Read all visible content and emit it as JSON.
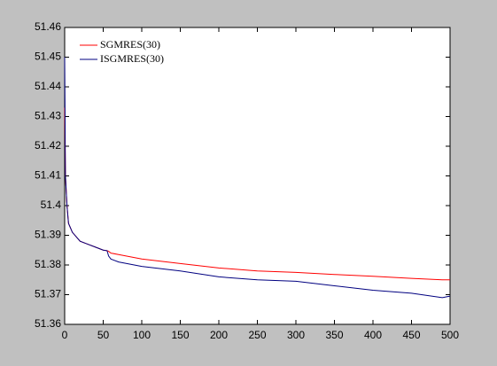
{
  "chart_data": {
    "type": "line",
    "x": [
      0,
      1,
      3,
      5,
      10,
      20,
      30,
      40,
      50,
      55,
      57,
      60,
      70,
      100,
      150,
      200,
      250,
      300,
      350,
      400,
      450,
      490,
      500
    ],
    "series": [
      {
        "name": "SGMRES(30)",
        "color": "#ff0000",
        "values": [
          51.433,
          51.41,
          51.4,
          51.394,
          51.391,
          51.388,
          51.387,
          51.386,
          51.385,
          51.3848,
          51.3846,
          51.384,
          51.3835,
          51.382,
          51.3805,
          51.379,
          51.378,
          51.3775,
          51.3768,
          51.3762,
          51.3755,
          51.375,
          51.375
        ]
      },
      {
        "name": "ISGMRES(30)",
        "color": "#000080",
        "values": [
          51.45,
          51.41,
          51.4,
          51.394,
          51.391,
          51.388,
          51.387,
          51.386,
          51.385,
          51.3848,
          51.383,
          51.382,
          51.381,
          51.3795,
          51.378,
          51.376,
          51.375,
          51.3745,
          51.373,
          51.3715,
          51.3705,
          51.369,
          51.3695
        ]
      }
    ],
    "xlim": [
      0,
      500
    ],
    "xticks": [
      0,
      50,
      100,
      150,
      200,
      250,
      300,
      350,
      400,
      450,
      500
    ],
    "ylim": [
      51.36,
      51.46
    ],
    "yticks": [
      51.36,
      51.37,
      51.38,
      51.39,
      51.4,
      51.41,
      51.42,
      51.43,
      51.44,
      51.45,
      51.46
    ],
    "legend": "top-left",
    "grid": false
  }
}
